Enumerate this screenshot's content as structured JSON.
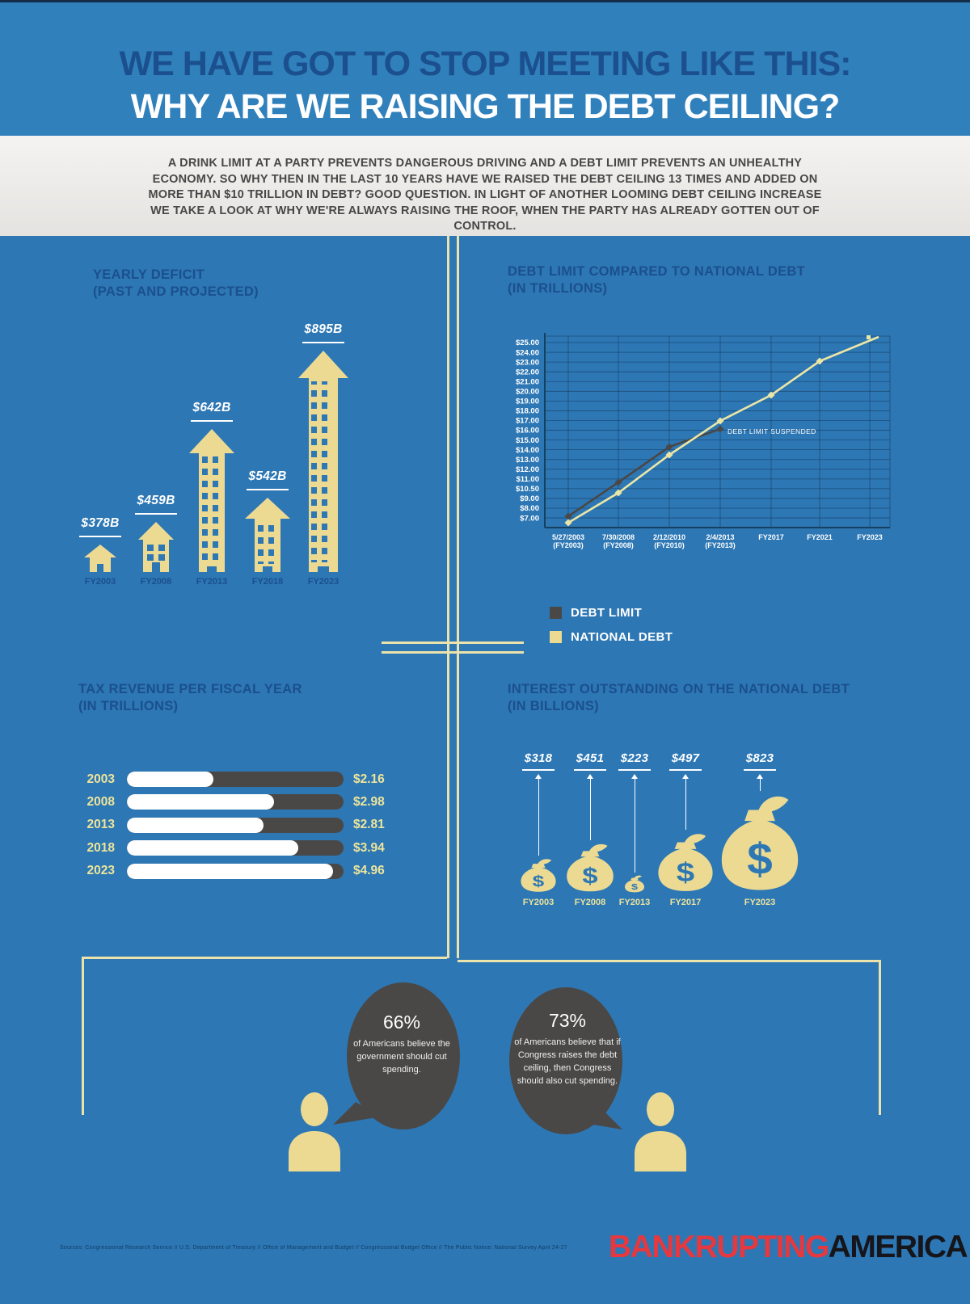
{
  "header": {
    "title_line1": "WE HAVE GOT TO STOP MEETING LIKE THIS:",
    "title_line2": "WHY ARE WE RAISING THE DEBT CEILING?",
    "intro": "A DRINK LIMIT AT A PARTY PREVENTS DANGEROUS DRIVING AND A DEBT LIMIT PREVENTS AN UNHEALTHY ECONOMY. SO WHY THEN IN THE LAST 10 YEARS HAVE WE RAISED THE DEBT CEILING 13 TIMES AND ADDED ON MORE THAN $10 TRILLION IN DEBT? GOOD QUESTION. IN LIGHT OF ANOTHER LOOMING DEBT CEILING INCREASE WE TAKE A LOOK AT WHY WE'RE ALWAYS RAISING THE ROOF, WHEN THE PARTY HAS ALREADY GOTTEN OUT OF CONTROL."
  },
  "yearly_deficit": {
    "title_line1": "YEARLY DEFICIT",
    "title_line2": "(PAST AND PROJECTED)",
    "items": [
      {
        "year": "FY2003",
        "label": "$378B"
      },
      {
        "year": "FY2008",
        "label": "$459B"
      },
      {
        "year": "FY2013",
        "label": "$642B"
      },
      {
        "year": "FY2018",
        "label": "$542B"
      },
      {
        "year": "FY2023",
        "label": "$895B"
      }
    ]
  },
  "debt_chart": {
    "title_line1": "DEBT LIMIT COMPARED TO NATIONAL DEBT",
    "title_line2": "(IN TRILLIONS)",
    "y_labels": [
      "$25.00",
      "$24.00",
      "$23.00",
      "$22.00",
      "$21.00",
      "$20.00",
      "$19.00",
      "$18.00",
      "$17.00",
      "$16.00",
      "$15.00",
      "$14.00",
      "$13.00",
      "$12.00",
      "$11.00",
      "$10.50",
      "$9.00",
      "$8.00",
      "$7.00"
    ],
    "x_labels": [
      [
        "5/27/2003",
        "(FY2003)"
      ],
      [
        "7/30/2008",
        "(FY2008)"
      ],
      [
        "2/12/2010",
        "(FY2010)"
      ],
      [
        "2/4/2013",
        "(FY2013)"
      ],
      [
        "FY2017",
        ""
      ],
      [
        "FY2021",
        ""
      ],
      [
        "FY2023",
        ""
      ]
    ],
    "annotation": "DEBT LIMIT SUSPENDED",
    "legend": [
      {
        "label": "DEBT LIMIT",
        "color": "#4a4846"
      },
      {
        "label": "NATIONAL DEBT",
        "color": "#ecda92"
      }
    ]
  },
  "tax_revenue": {
    "title_line1": "TAX REVENUE PER FISCAL YEAR",
    "title_line2": "(IN TRILLIONS)",
    "rows": [
      {
        "year": "2003",
        "value": "$2.16",
        "fill_pct": 40
      },
      {
        "year": "2008",
        "value": "$2.98",
        "fill_pct": 68
      },
      {
        "year": "2013",
        "value": "$2.81",
        "fill_pct": 63
      },
      {
        "year": "2018",
        "value": "$3.94",
        "fill_pct": 79
      },
      {
        "year": "2023",
        "value": "$4.96",
        "fill_pct": 95
      }
    ]
  },
  "interest": {
    "title_line1": "INTEREST OUTSTANDING ON THE NATIONAL DEBT",
    "title_line2": "(IN BILLIONS)",
    "items": [
      {
        "year": "FY2003",
        "value": "$318"
      },
      {
        "year": "FY2008",
        "value": "$451"
      },
      {
        "year": "FY2013",
        "value": "$223"
      },
      {
        "year": "FY2017",
        "value": "$497"
      },
      {
        "year": "FY2023",
        "value": "$823"
      }
    ]
  },
  "bubbles": [
    {
      "pct": "66%",
      "text": "of Americans believe the government should cut spending."
    },
    {
      "pct": "73%",
      "text": "of Americans believe that if Congress raises the debt ceiling, then Congress should also cut spending."
    }
  ],
  "footer": {
    "sources": "Sources: Congressional Research Service // U.S. Department of Treasury // Office of Management and Budget // Congressional Budget Office // The Public Notice: National Survey April 24-27",
    "logo_red": "BANKRUPTING",
    "logo_dark": "AMERICA"
  },
  "colors": {
    "background_blue": "#2d77b4",
    "header_blue": "#3080bc",
    "navy_text": "#1b4f8e",
    "cream": "#ecda92",
    "pale_line": "#ebe3ab",
    "dark_gray": "#4a4846",
    "logo_red": "#e5383f"
  },
  "chart_data": [
    {
      "type": "bar",
      "title": "YEARLY DEFICIT (PAST AND PROJECTED)",
      "categories": [
        "FY2003",
        "FY2008",
        "FY2013",
        "FY2018",
        "FY2023"
      ],
      "values": [
        378,
        459,
        642,
        542,
        895
      ],
      "unit": "billions USD",
      "data_labels": [
        "$378B",
        "$459B",
        "$642B",
        "$542B",
        "$895B"
      ],
      "style": "pictogram buildings with arrow roofs"
    },
    {
      "type": "line",
      "title": "DEBT LIMIT COMPARED TO NATIONAL DEBT (IN TRILLIONS)",
      "x": [
        "5/27/2003 (FY2003)",
        "7/30/2008 (FY2008)",
        "2/12/2010 (FY2010)",
        "2/4/2013 (FY2013)",
        "FY2017",
        "FY2021",
        "FY2023"
      ],
      "series": [
        {
          "name": "DEBT LIMIT",
          "color": "#4a4846",
          "values": [
            7.4,
            10.7,
            14.3,
            16.4,
            null,
            null,
            null
          ]
        },
        {
          "name": "NATIONAL DEBT",
          "color": "#ecda92",
          "values": [
            6.5,
            10.0,
            13.5,
            16.7,
            19.9,
            23.1,
            25.4
          ]
        }
      ],
      "y_tick_labels": [
        "$25.00",
        "$24.00",
        "$23.00",
        "$22.00",
        "$21.00",
        "$20.00",
        "$19.00",
        "$18.00",
        "$17.00",
        "$16.00",
        "$15.00",
        "$14.00",
        "$13.00",
        "$12.00",
        "$11.00",
        "$10.50",
        "$9.00",
        "$8.00",
        "$7.00"
      ],
      "annotation": "DEBT LIMIT SUSPENDED",
      "grid": true,
      "legend_position": "bottom-left"
    },
    {
      "type": "bar",
      "orientation": "horizontal",
      "title": "TAX REVENUE PER FISCAL YEAR (IN TRILLIONS)",
      "categories": [
        "2003",
        "2008",
        "2013",
        "2018",
        "2023"
      ],
      "values": [
        2.16,
        2.98,
        2.81,
        3.94,
        4.96
      ],
      "unit": "trillions USD",
      "data_labels": [
        "$2.16",
        "$2.98",
        "$2.81",
        "$3.94",
        "$4.96"
      ]
    },
    {
      "type": "bar",
      "title": "INTEREST OUTSTANDING ON THE NATIONAL DEBT (IN BILLIONS)",
      "categories": [
        "FY2003",
        "FY2008",
        "FY2013",
        "FY2017",
        "FY2023"
      ],
      "values": [
        318,
        451,
        223,
        497,
        823
      ],
      "unit": "billions USD",
      "data_labels": [
        "$318",
        "$451",
        "$223",
        "$497",
        "$823"
      ],
      "style": "pictogram money bags"
    }
  ]
}
